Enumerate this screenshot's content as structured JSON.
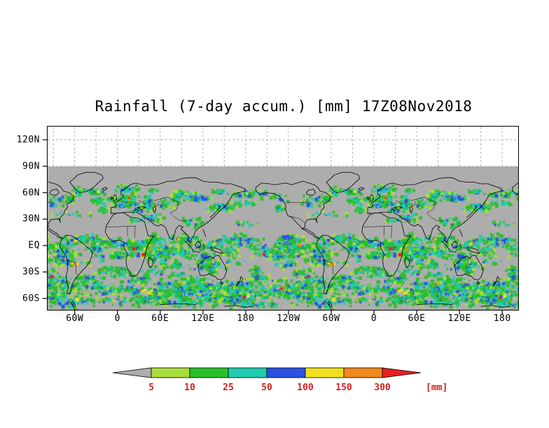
{
  "title": "Rainfall (7-day accum.) [mm] 17Z08Nov2018",
  "chart_data": {
    "type": "heatmap",
    "title": "Rainfall (7-day accum.) [mm]",
    "valid_time": "17Z08Nov2018",
    "map_background": "#adadad",
    "y_axis_ticks": [
      "120N",
      "90N",
      "60N",
      "30N",
      "EQ",
      "30S",
      "60S"
    ],
    "x_axis_ticks": [
      "60W",
      "0",
      "60E",
      "120E",
      "180",
      "120W",
      "60W",
      "0",
      "60E",
      "120E",
      "180"
    ],
    "colorbar": {
      "levels": [
        "5",
        "10",
        "25",
        "50",
        "100",
        "150",
        "300"
      ],
      "unit": "[mm]",
      "colors": [
        "#adadad",
        "#a8dc3c",
        "#28c028",
        "#1fccb0",
        "#2a52e0",
        "#f0e020",
        "#f08820",
        "#e82020"
      ],
      "label_color": "#cc2222"
    }
  }
}
